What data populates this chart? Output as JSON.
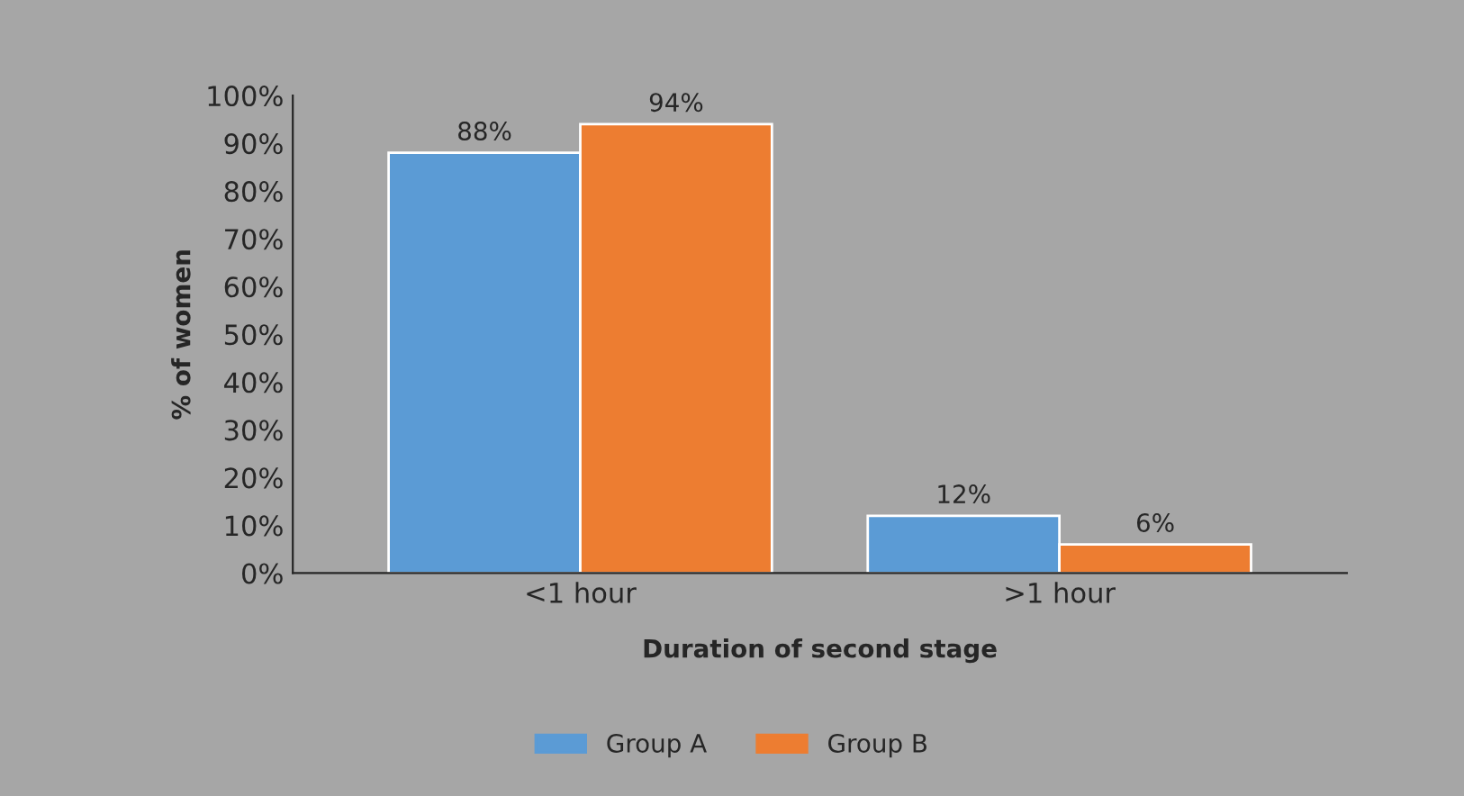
{
  "chart_data": {
    "type": "bar",
    "xlabel": "Duration of second stage",
    "ylabel": "% of women",
    "categories": [
      "<1 hour",
      ">1 hour"
    ],
    "series": [
      {
        "name": "Group A",
        "color": "#5b9bd5",
        "values": [
          88,
          12
        ],
        "value_labels": [
          "88%",
          "12%"
        ]
      },
      {
        "name": "Group B",
        "color": "#ed7d31",
        "values": [
          94,
          6
        ],
        "value_labels": [
          "94%",
          "6%"
        ]
      }
    ],
    "ylim": [
      0,
      100
    ],
    "yticks": [
      {
        "value": 0,
        "label": "0%"
      },
      {
        "value": 10,
        "label": "10%"
      },
      {
        "value": 20,
        "label": "20%"
      },
      {
        "value": 30,
        "label": "30%"
      },
      {
        "value": 40,
        "label": "40%"
      },
      {
        "value": 50,
        "label": "50%"
      },
      {
        "value": 60,
        "label": "60%"
      },
      {
        "value": 70,
        "label": "70%"
      },
      {
        "value": 80,
        "label": "80%"
      },
      {
        "value": 90,
        "label": "90%"
      },
      {
        "value": 100,
        "label": "100%"
      }
    ],
    "grid": false,
    "legend": "bottom"
  }
}
